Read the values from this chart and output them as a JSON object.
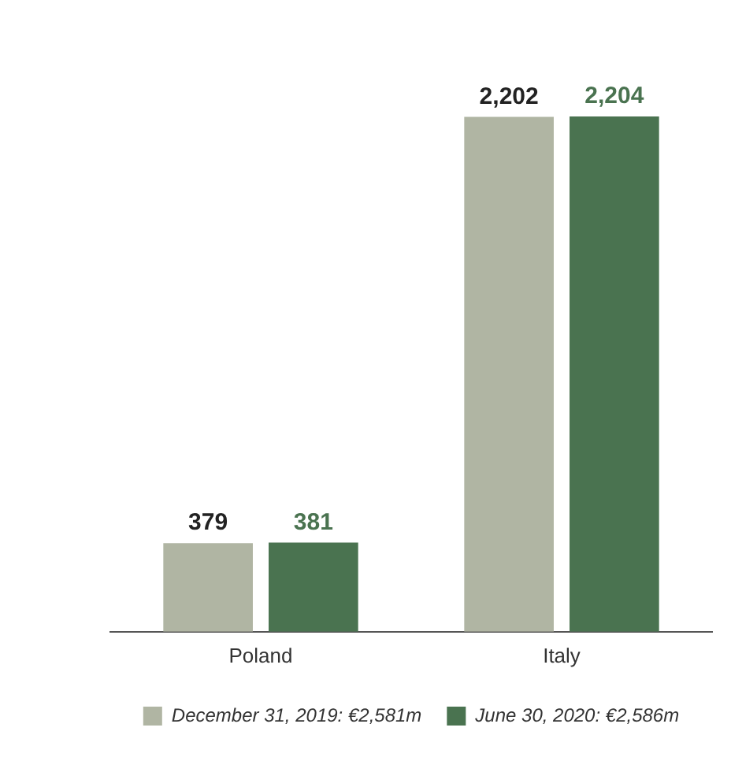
{
  "chart_data": {
    "type": "bar",
    "categories": [
      "Poland",
      "Italy"
    ],
    "series": [
      {
        "name": "December 31, 2019: €2,581m",
        "color": "#b0b5a3",
        "values": [
          379,
          2202
        ],
        "value_labels": [
          "379",
          "2,202"
        ]
      },
      {
        "name": "June 30, 2020: €2,586m",
        "color": "#4a7350",
        "values": [
          381,
          2204
        ],
        "value_labels": [
          "381",
          "2,204"
        ]
      }
    ],
    "legend": "bottom",
    "grid": false
  }
}
